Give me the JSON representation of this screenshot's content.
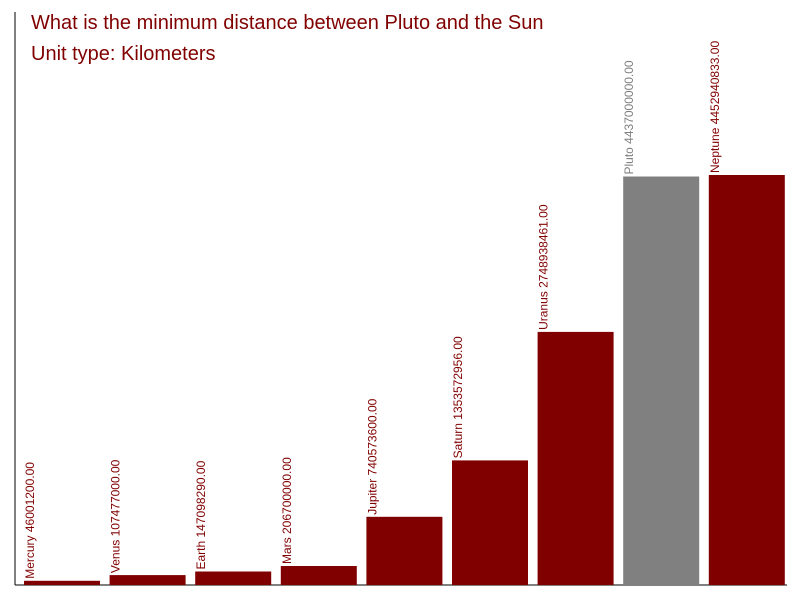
{
  "chart_data": {
    "type": "bar",
    "title": "What is the minimum distance between Pluto and the Sun",
    "subtitle": "Unit type: Kilometers",
    "categories": [
      "Mercury",
      "Venus",
      "Earth",
      "Mars",
      "Jupiter",
      "Saturn",
      "Uranus",
      "Pluto",
      "Neptune"
    ],
    "values": [
      46001200.0,
      107477000.0,
      147098290.0,
      206700000.0,
      740573600.0,
      1353572956.0,
      2748938461.0,
      4437000000.0,
      4452940833.0
    ],
    "labels": [
      "Mercury 46001200.00",
      "Venus 107477000.00",
      "Earth 147098290.00",
      "Mars 206700000.00",
      "Jupiter 740573600.00",
      "Saturn 1353572956.00",
      "Uranus 2748938461.00",
      "Pluto 4437000000.00",
      "Neptune 4452940833.00"
    ],
    "highlight": "Pluto",
    "grid": false,
    "ylim": [
      0,
      4452940833.0
    ]
  },
  "colors": {
    "bar": "#800000",
    "highlight": "#808080",
    "title": "#800000",
    "axis": "#000000"
  }
}
